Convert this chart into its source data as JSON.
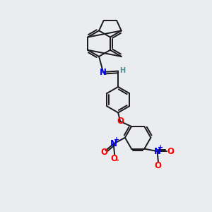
{
  "background_color": "#eaecf0",
  "bond_color": "#1a1a1a",
  "bond_width": 1.4,
  "N_color": "#0000ff",
  "O_color": "#ff0000",
  "H_color": "#4a9090",
  "text_fontsize": 8.5,
  "figsize": [
    3.0,
    3.0
  ],
  "dpi": 100,
  "xlim": [
    0,
    10
  ],
  "ylim": [
    0,
    10
  ]
}
